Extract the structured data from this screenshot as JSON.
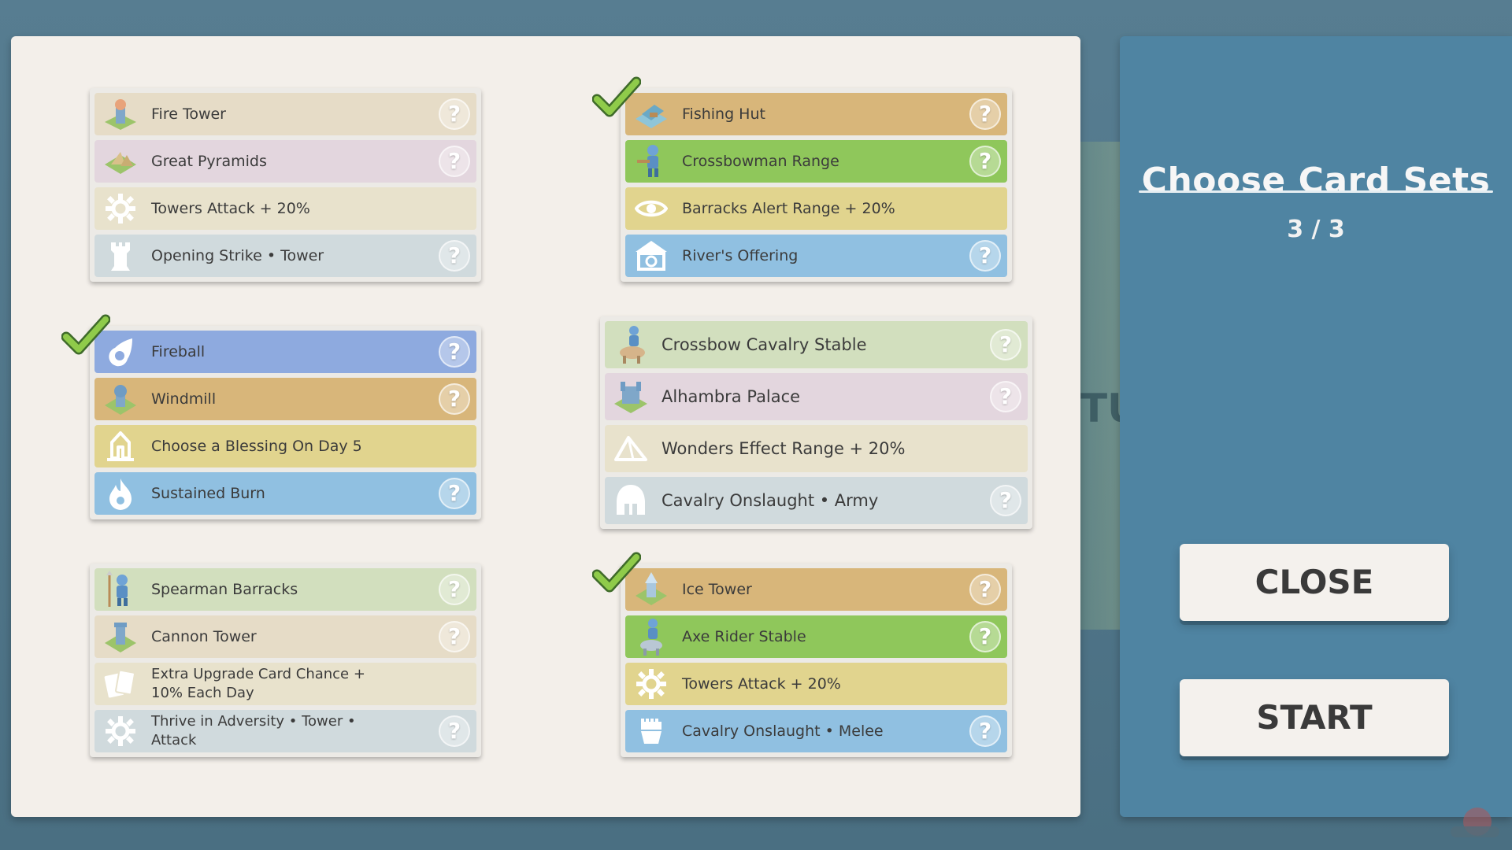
{
  "side_panel": {
    "title": "Choose Card Sets",
    "count": "3 / 3",
    "close_label": "CLOSE",
    "start_label": "START"
  },
  "background": {
    "peek_text": "TU"
  },
  "colors": {
    "check_green": "#8fcb4a",
    "panel_blue": "#4f84a2"
  },
  "card_sets": [
    {
      "id": "set1",
      "selected": false,
      "rows": [
        {
          "label": "Fire Tower",
          "icon": "fire-tower-icon",
          "help": "?"
        },
        {
          "label": "Great Pyramids",
          "icon": "great-pyramids-icon",
          "help": "?"
        },
        {
          "label": "Towers Attack + 20%",
          "icon": "gear-icon"
        },
        {
          "label": "Opening Strike  •  Tower",
          "icon": "tower-icon",
          "help": "?"
        }
      ]
    },
    {
      "id": "set2",
      "selected": true,
      "rows": [
        {
          "label": "Fishing Hut",
          "icon": "fishing-hut-icon",
          "help": "?"
        },
        {
          "label": "Crossbowman Range",
          "icon": "crossbowman-icon",
          "help": "?"
        },
        {
          "label": "Barracks Alert Range + 20%",
          "icon": "eye-icon"
        },
        {
          "label": "River's Offering",
          "icon": "river-temple-icon",
          "help": "?"
        }
      ]
    },
    {
      "id": "set3",
      "selected": true,
      "rows": [
        {
          "label": "Fireball",
          "icon": "fireball-icon",
          "help": "?"
        },
        {
          "label": "Windmill",
          "icon": "windmill-icon",
          "help": "?"
        },
        {
          "label": "Choose a Blessing On Day 5",
          "icon": "blessing-hands-icon"
        },
        {
          "label": "Sustained Burn",
          "icon": "flame-icon",
          "help": "?"
        }
      ]
    },
    {
      "id": "set4",
      "selected": false,
      "rows": [
        {
          "label": "Crossbow Cavalry Stable",
          "icon": "crossbow-cavalry-icon",
          "help": "?"
        },
        {
          "label": "Alhambra Palace",
          "icon": "alhambra-palace-icon",
          "help": "?"
        },
        {
          "label": "Wonders Effect Range + 20%",
          "icon": "pyramid-icon"
        },
        {
          "label": "Cavalry Onslaught  •  Army",
          "icon": "helmet-icon",
          "help": "?"
        }
      ]
    },
    {
      "id": "set5",
      "selected": false,
      "rows": [
        {
          "label": "Spearman Barracks",
          "icon": "spearman-icon",
          "help": "?"
        },
        {
          "label": "Cannon Tower",
          "icon": "cannon-tower-icon",
          "help": "?"
        },
        {
          "label": "Extra Upgrade Card Chance +\n10% Each Day",
          "icon": "cards-icon"
        },
        {
          "label": "Thrive in Adversity  •  Tower  •\nAttack",
          "icon": "gear-icon",
          "help": "?"
        }
      ]
    },
    {
      "id": "set6",
      "selected": true,
      "rows": [
        {
          "label": "Ice Tower",
          "icon": "ice-tower-icon",
          "help": "?"
        },
        {
          "label": "Axe Rider Stable",
          "icon": "axe-rider-icon",
          "help": "?"
        },
        {
          "label": "Towers Attack + 20%",
          "icon": "gear-icon"
        },
        {
          "label": "Cavalry Onslaught  •  Melee",
          "icon": "fist-icon",
          "help": "?"
        }
      ]
    }
  ]
}
